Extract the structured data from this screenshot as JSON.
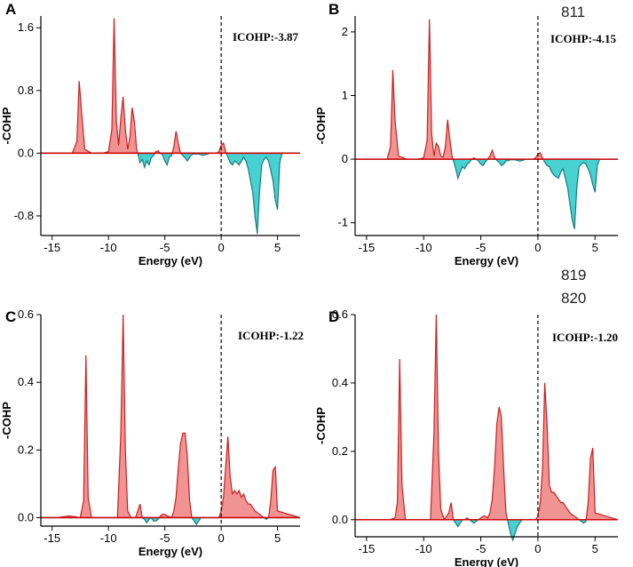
{
  "line_numbers": [
    "811",
    "819",
    "820"
  ],
  "chart_data": [
    {
      "panel": "A",
      "type": "area",
      "title": "",
      "xlabel": "Energy (eV)",
      "ylabel": "-COHP",
      "xlim": [
        -16,
        7
      ],
      "ylim": [
        -1.05,
        1.75
      ],
      "xticks": [
        -15,
        -10,
        -5,
        0,
        5
      ],
      "xtick_labels": [
        "-15",
        "-10",
        "-5",
        "0",
        "5"
      ],
      "yticks": [
        -0.8,
        0.0,
        0.8,
        1.6
      ],
      "ytick_labels": [
        "-0.8",
        "0.0",
        "0.8",
        "1.6"
      ],
      "annotation": "ICOHP:-3.87",
      "x": [
        -16,
        -13.2,
        -12.8,
        -12.6,
        -12.4,
        -12.1,
        -11.5,
        -10.5,
        -10.0,
        -9.7,
        -9.5,
        -9.3,
        -9.1,
        -8.9,
        -8.7,
        -8.5,
        -8.3,
        -8.1,
        -7.9,
        -7.7,
        -7.5,
        -7.35,
        -7.2,
        -7.0,
        -6.8,
        -6.6,
        -6.4,
        -6.2,
        -6.0,
        -5.8,
        -5.6,
        -5.4,
        -5.2,
        -5.0,
        -4.8,
        -4.6,
        -4.4,
        -4.2,
        -4.0,
        -3.8,
        -3.6,
        -3.4,
        -3.2,
        -3.0,
        -2.8,
        -2.6,
        -2.4,
        -2.2,
        -2.0,
        -1.8,
        -1.6,
        -1.4,
        -1.2,
        -1.0,
        -0.8,
        -0.6,
        -0.4,
        -0.2,
        0.0,
        0.2,
        0.4,
        0.6,
        0.8,
        1.0,
        1.2,
        1.4,
        1.6,
        1.8,
        2.0,
        2.2,
        2.4,
        2.6,
        2.8,
        3.0,
        3.2,
        3.4,
        3.6,
        3.8,
        4.0,
        4.2,
        4.4,
        4.6,
        4.8,
        5.0,
        5.2,
        5.4,
        7.0
      ],
      "y": [
        0,
        0,
        0.15,
        0.92,
        0.55,
        0.05,
        0.0,
        0.0,
        0.02,
        0.3,
        1.72,
        0.4,
        0.1,
        0.45,
        0.72,
        0.3,
        0.05,
        0.2,
        0.58,
        0.4,
        0.05,
        -0.03,
        -0.12,
        -0.08,
        -0.18,
        -0.1,
        -0.15,
        -0.06,
        -0.03,
        0.02,
        0.03,
        0.0,
        -0.02,
        -0.1,
        -0.15,
        -0.05,
        -0.03,
        0.08,
        0.28,
        0.12,
        0.0,
        -0.03,
        -0.06,
        -0.1,
        -0.05,
        -0.02,
        -0.01,
        -0.01,
        -0.01,
        -0.02,
        -0.03,
        -0.02,
        -0.01,
        0.0,
        0.0,
        0.0,
        0.0,
        0.02,
        0.1,
        0.13,
        0.02,
        -0.05,
        -0.12,
        -0.15,
        -0.1,
        -0.12,
        -0.15,
        -0.1,
        -0.05,
        -0.1,
        -0.2,
        -0.35,
        -0.5,
        -0.8,
        -1.03,
        -0.5,
        -0.15,
        -0.08,
        -0.05,
        -0.1,
        -0.22,
        -0.35,
        -0.6,
        -0.72,
        -0.12,
        0.0,
        0.0
      ]
    },
    {
      "panel": "B",
      "type": "area",
      "title": "",
      "xlabel": "Energy (eV)",
      "ylabel": "-COHP",
      "xlim": [
        -16,
        7
      ],
      "ylim": [
        -1.2,
        2.25
      ],
      "xticks": [
        -15,
        -10,
        -5,
        0,
        5
      ],
      "xtick_labels": [
        "-15",
        "-10",
        "-5",
        "0",
        "5"
      ],
      "yticks": [
        -1,
        0,
        1,
        2
      ],
      "ytick_labels": [
        "-1",
        "0",
        "1",
        "2"
      ],
      "annotation": "ICOHP:-4.15",
      "x": [
        -16,
        -13.2,
        -12.9,
        -12.7,
        -12.5,
        -12.2,
        -11.5,
        -10.5,
        -10.0,
        -9.7,
        -9.5,
        -9.3,
        -9.1,
        -8.9,
        -8.7,
        -8.5,
        -8.3,
        -8.1,
        -7.9,
        -7.7,
        -7.5,
        -7.35,
        -7.2,
        -7.0,
        -6.8,
        -6.6,
        -6.4,
        -6.2,
        -6.0,
        -5.8,
        -5.6,
        -5.4,
        -5.2,
        -5.0,
        -4.8,
        -4.6,
        -4.4,
        -4.2,
        -4.0,
        -3.8,
        -3.6,
        -3.4,
        -3.2,
        -3.0,
        -2.8,
        -2.6,
        -2.4,
        -2.2,
        -2.0,
        -1.8,
        -1.6,
        -1.4,
        -1.2,
        -1.0,
        -0.8,
        -0.6,
        -0.4,
        -0.2,
        0.0,
        0.2,
        0.4,
        0.6,
        0.8,
        1.0,
        1.2,
        1.4,
        1.6,
        1.8,
        2.0,
        2.2,
        2.4,
        2.6,
        2.8,
        3.0,
        3.2,
        3.4,
        3.6,
        3.8,
        4.0,
        4.2,
        4.4,
        4.6,
        4.8,
        5.0,
        5.2,
        5.4,
        7.0
      ],
      "y": [
        0,
        0,
        0.2,
        1.4,
        0.6,
        0.05,
        0.0,
        0.0,
        0.02,
        0.3,
        2.2,
        0.4,
        0.05,
        0.25,
        0.2,
        0.05,
        0.03,
        0.2,
        0.62,
        0.3,
        0.03,
        -0.05,
        -0.15,
        -0.3,
        -0.2,
        -0.12,
        -0.15,
        -0.08,
        -0.05,
        0.0,
        0.02,
        0.0,
        -0.03,
        -0.08,
        -0.1,
        -0.04,
        0.0,
        0.05,
        0.14,
        0.03,
        -0.02,
        -0.05,
        -0.1,
        -0.08,
        -0.03,
        -0.02,
        -0.01,
        -0.01,
        -0.01,
        -0.02,
        -0.03,
        -0.02,
        -0.01,
        0.0,
        0.0,
        0.0,
        0.0,
        0.02,
        0.08,
        0.1,
        0.02,
        -0.05,
        -0.1,
        -0.12,
        -0.2,
        -0.25,
        -0.28,
        -0.3,
        -0.2,
        -0.15,
        -0.3,
        -0.45,
        -0.7,
        -0.95,
        -1.1,
        -0.45,
        -0.12,
        -0.08,
        -0.05,
        -0.08,
        -0.15,
        -0.25,
        -0.4,
        -0.52,
        -0.1,
        0.0,
        0.0
      ]
    },
    {
      "panel": "C",
      "type": "area",
      "title": "",
      "xlabel": "Energy (eV)",
      "ylabel": "-COHP",
      "xlim": [
        -16,
        7
      ],
      "ylim": [
        -0.025,
        0.6
      ],
      "xticks": [
        -15,
        -10,
        -5,
        0,
        5
      ],
      "xtick_labels": [
        "-15",
        "-10",
        "-5",
        "0",
        "5"
      ],
      "yticks": [
        0.0,
        0.2,
        0.4,
        0.6
      ],
      "ytick_labels": [
        "0.0",
        "0.2",
        "0.4",
        "0.6"
      ],
      "annotation": "ICOHP:-1.22",
      "x": [
        -16,
        -14.5,
        -14.0,
        -13.5,
        -13.0,
        -12.5,
        -12.2,
        -12.0,
        -11.8,
        -11.5,
        -11.0,
        -10.0,
        -9.2,
        -8.9,
        -8.7,
        -8.5,
        -8.3,
        -8.0,
        -7.6,
        -7.4,
        -7.2,
        -7.0,
        -6.8,
        -6.6,
        -6.4,
        -6.2,
        -6.0,
        -5.8,
        -5.6,
        -5.4,
        -5.2,
        -5.0,
        -4.8,
        -4.6,
        -4.4,
        -4.2,
        -4.0,
        -3.8,
        -3.6,
        -3.4,
        -3.2,
        -3.0,
        -2.8,
        -2.6,
        -2.4,
        -2.2,
        -2.0,
        -1.8,
        -1.6,
        -1.4,
        -1.2,
        -1.0,
        -0.8,
        -0.6,
        -0.4,
        -0.2,
        0.0,
        0.2,
        0.4,
        0.6,
        0.8,
        1.0,
        1.2,
        1.4,
        1.6,
        1.8,
        2.0,
        2.2,
        2.4,
        2.6,
        2.8,
        3.0,
        3.2,
        3.4,
        3.6,
        3.8,
        4.0,
        4.2,
        4.4,
        4.6,
        4.8,
        5.0,
        7.0
      ],
      "y": [
        0,
        0,
        0.003,
        0.005,
        0.003,
        0.0,
        0.05,
        0.48,
        0.06,
        0.0,
        0.0,
        0.0,
        0.0,
        0.25,
        0.6,
        0.2,
        0.02,
        0.0,
        0.0,
        0.02,
        0.04,
        0.0,
        -0.005,
        -0.015,
        -0.005,
        0.0,
        -0.01,
        -0.01,
        -0.005,
        0.005,
        0.01,
        0.01,
        0.005,
        0.003,
        0.0,
        0.02,
        0.06,
        0.15,
        0.22,
        0.25,
        0.25,
        0.18,
        0.05,
        0.0,
        -0.01,
        -0.02,
        -0.01,
        0.0,
        0.0,
        0.0,
        0.0,
        0.0,
        0.0,
        0.0,
        0.0,
        0.0,
        0.02,
        0.06,
        0.15,
        0.24,
        0.12,
        0.07,
        0.08,
        0.07,
        0.08,
        0.06,
        0.07,
        0.05,
        0.04,
        0.04,
        0.03,
        0.02,
        0.015,
        0.01,
        0.005,
        0.0,
        -0.005,
        0.0,
        0.05,
        0.14,
        0.15,
        0.02,
        0.0
      ]
    },
    {
      "panel": "D",
      "type": "area",
      "title": "",
      "xlabel": "Energy (eV)",
      "ylabel": "-COHP",
      "xlim": [
        -16,
        7
      ],
      "ylim": [
        -0.05,
        0.6
      ],
      "xticks": [
        -15,
        -10,
        -5,
        0,
        5
      ],
      "xtick_labels": [
        "-15",
        "-10",
        "-5",
        "0",
        "5"
      ],
      "yticks": [
        0.0,
        0.2,
        0.4,
        0.6
      ],
      "ytick_labels": [
        "0.0",
        "0.2",
        "0.4",
        "0.6"
      ],
      "annotation": "ICOHP:-1.20",
      "x": [
        -16,
        -14.5,
        -13.0,
        -12.5,
        -12.3,
        -12.1,
        -11.9,
        -11.6,
        -11.0,
        -10.0,
        -9.4,
        -9.1,
        -8.9,
        -8.7,
        -8.5,
        -8.2,
        -7.8,
        -7.6,
        -7.4,
        -7.2,
        -7.0,
        -6.8,
        -6.6,
        -6.4,
        -6.2,
        -6.0,
        -5.8,
        -5.6,
        -5.4,
        -5.2,
        -5.0,
        -4.8,
        -4.6,
        -4.4,
        -4.2,
        -4.0,
        -3.8,
        -3.6,
        -3.4,
        -3.2,
        -3.0,
        -2.8,
        -2.6,
        -2.4,
        -2.2,
        -2.0,
        -1.8,
        -1.6,
        -1.4,
        -1.2,
        -1.0,
        -0.8,
        -0.6,
        -0.4,
        -0.2,
        0.0,
        0.2,
        0.4,
        0.6,
        0.8,
        1.0,
        1.2,
        1.4,
        1.6,
        1.8,
        2.0,
        2.2,
        2.4,
        2.6,
        2.8,
        3.0,
        3.2,
        3.4,
        3.6,
        3.8,
        4.0,
        4.2,
        4.4,
        4.6,
        4.8,
        5.0,
        7.0
      ],
      "y": [
        0,
        0,
        0.0,
        0.005,
        0.05,
        0.47,
        0.1,
        0.0,
        0.0,
        0.0,
        0.0,
        0.25,
        0.6,
        0.2,
        0.03,
        0.0,
        0.02,
        0.05,
        0.0,
        -0.01,
        -0.02,
        -0.01,
        0.0,
        0.0,
        0.005,
        0.0,
        -0.005,
        -0.01,
        -0.005,
        0.0,
        0.005,
        0.01,
        0.01,
        0.005,
        0.02,
        0.06,
        0.15,
        0.28,
        0.33,
        0.3,
        0.15,
        0.02,
        -0.01,
        -0.04,
        -0.06,
        -0.04,
        -0.02,
        -0.01,
        0.0,
        0.0,
        0.0,
        0.0,
        0.0,
        0.0,
        0.0,
        0.01,
        0.05,
        0.15,
        0.4,
        0.28,
        0.1,
        0.08,
        0.08,
        0.07,
        0.06,
        0.05,
        0.05,
        0.04,
        0.03,
        0.02,
        0.015,
        0.01,
        0.005,
        0.0,
        -0.005,
        -0.01,
        -0.005,
        0.05,
        0.18,
        0.21,
        0.02,
        0.0
      ]
    }
  ]
}
